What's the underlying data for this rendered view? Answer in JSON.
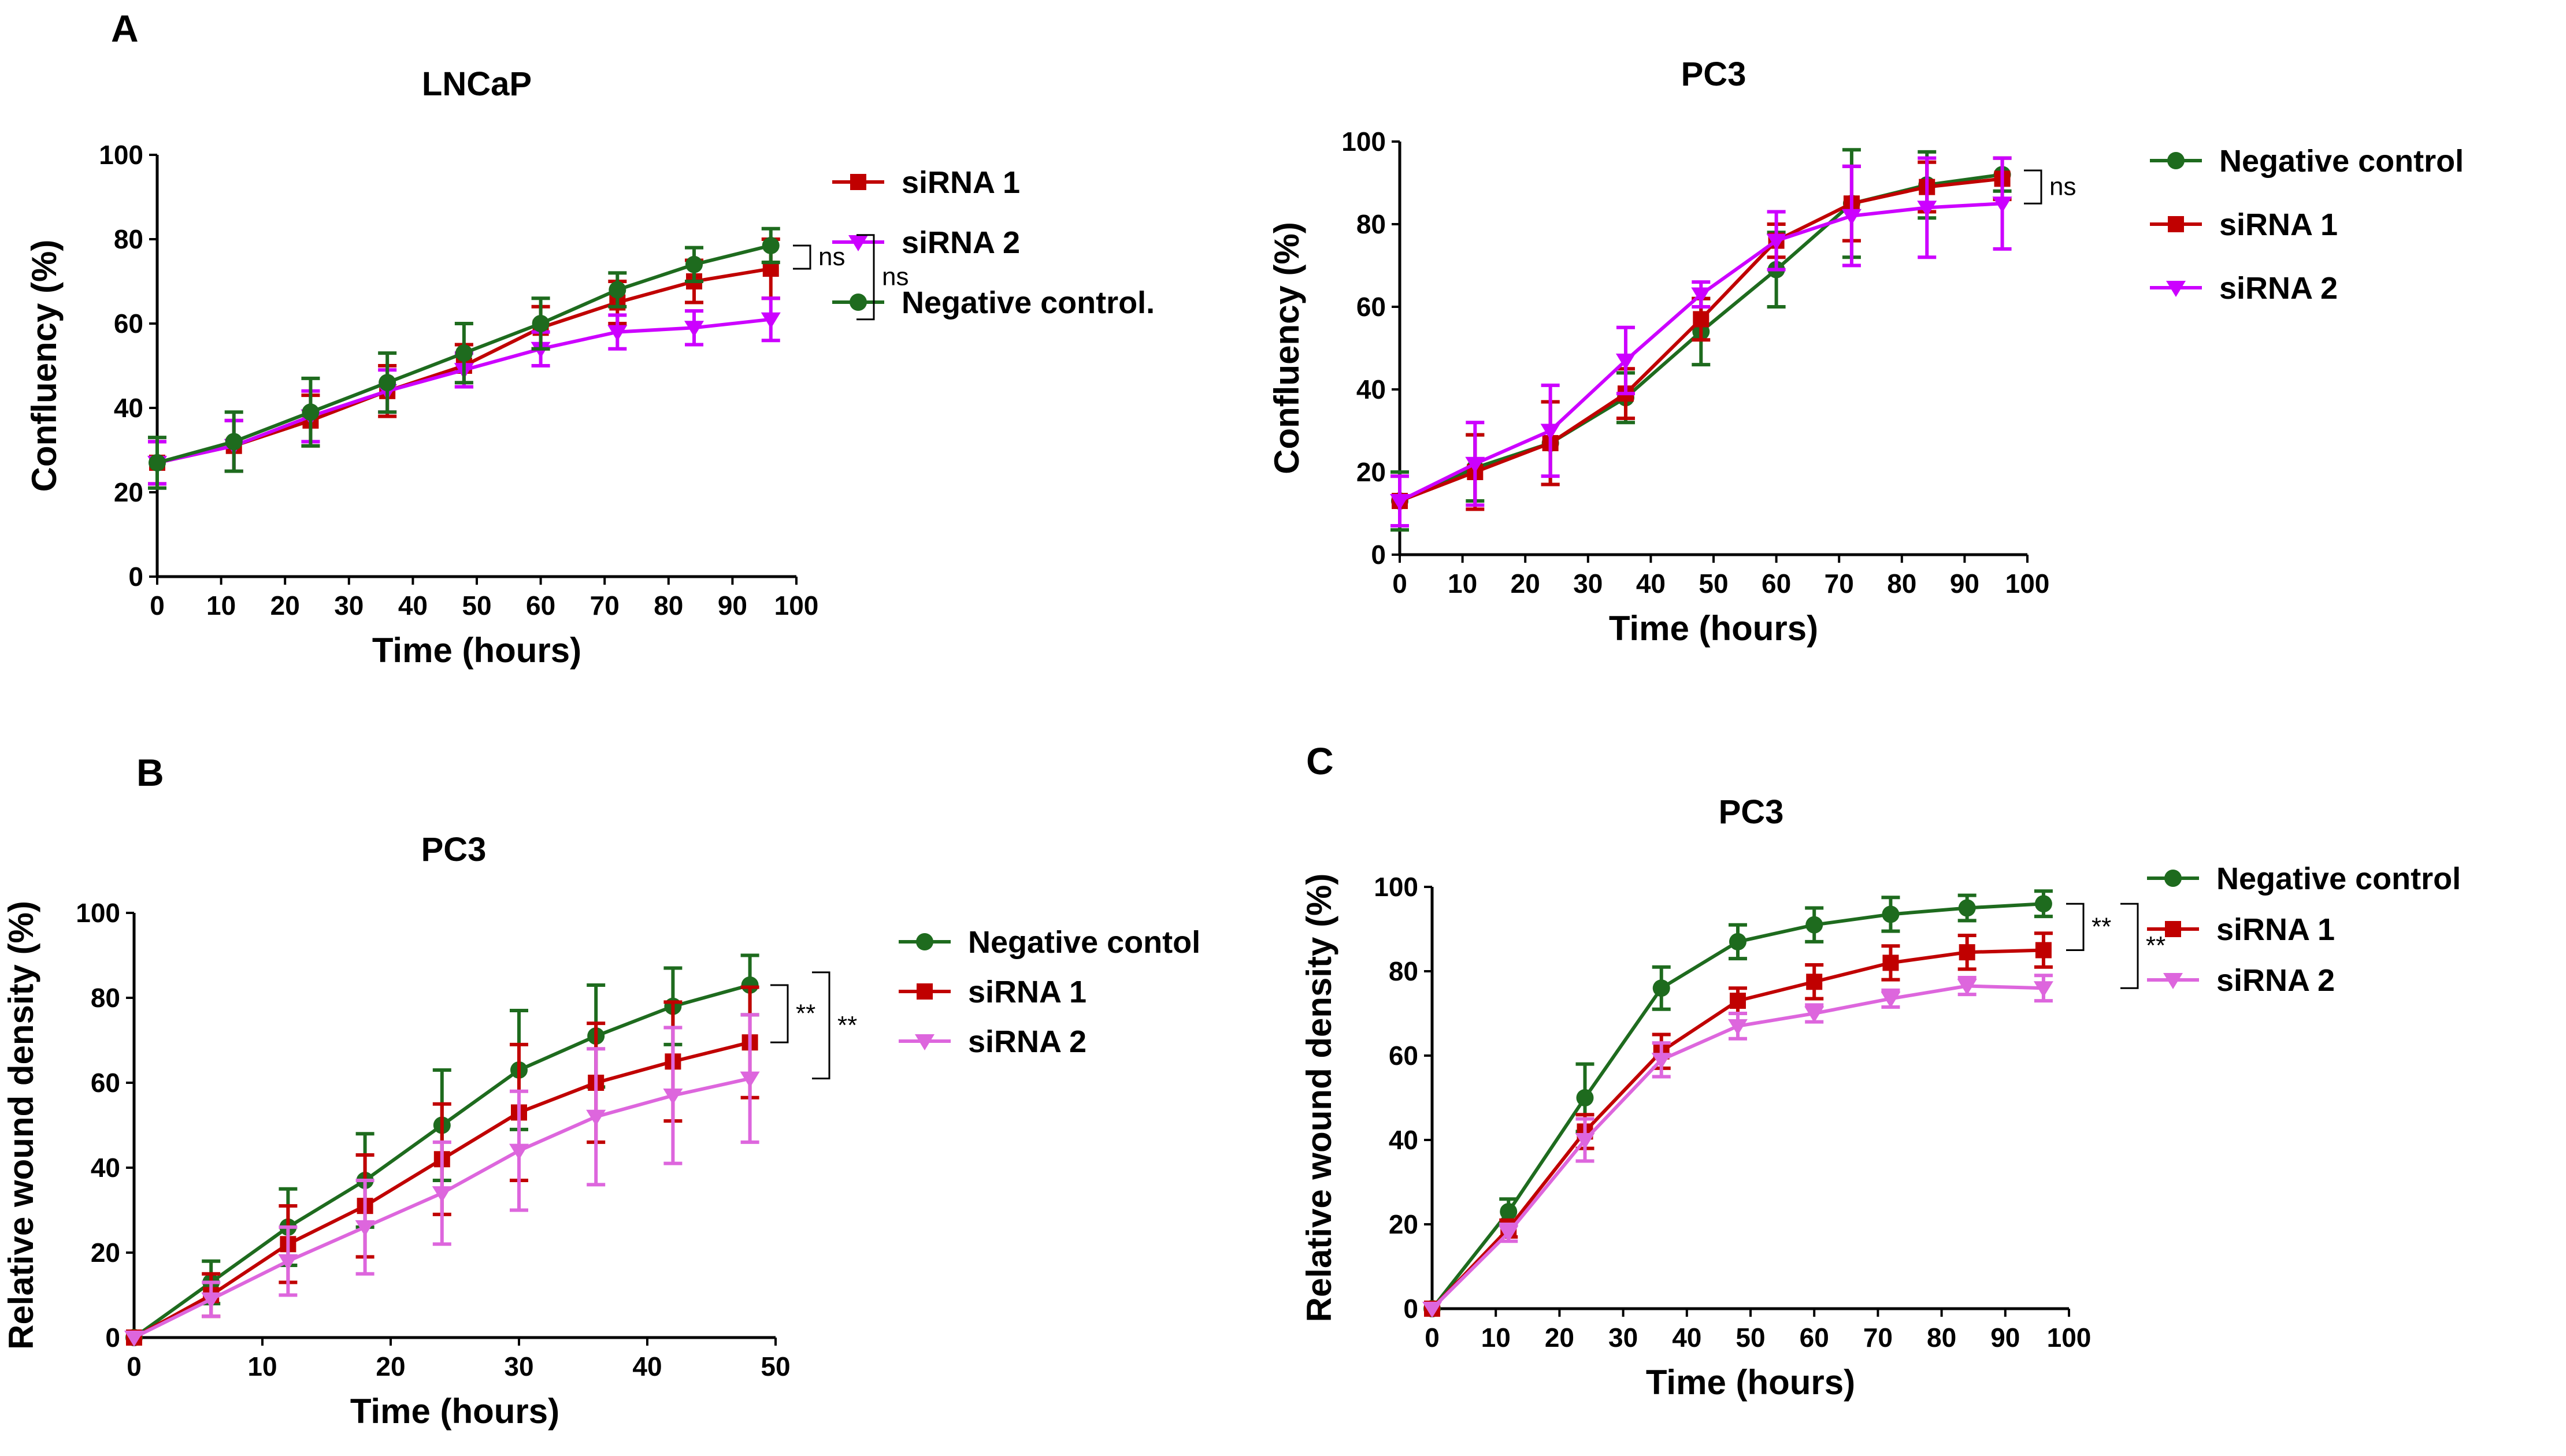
{
  "panels": [
    {
      "id": "A",
      "label": "A"
    },
    {
      "id": "B",
      "label": "B"
    },
    {
      "id": "C",
      "label": "C"
    }
  ],
  "chart_data": [
    {
      "id": "a-lncap",
      "panel": "A",
      "type": "line",
      "title": "LNCaP",
      "xlabel": "Time (hours)",
      "ylabel": "Confluency (%)",
      "xlim": [
        0,
        100
      ],
      "ylim": [
        0,
        100
      ],
      "xticks": [
        0,
        10,
        20,
        30,
        40,
        50,
        60,
        70,
        80,
        90,
        100
      ],
      "yticks": [
        0,
        20,
        40,
        60,
        80,
        100
      ],
      "x": [
        0,
        12,
        24,
        36,
        48,
        60,
        72,
        84,
        96
      ],
      "legend_order": [
        "siRNA 1",
        "siRNA 2",
        "Negative control."
      ],
      "series": [
        {
          "name": "siRNA 1",
          "color": "#c00000",
          "marker": "square",
          "values": [
            27,
            31,
            37,
            44,
            50,
            59,
            65,
            70,
            73
          ],
          "errors": [
            5,
            6,
            6,
            6,
            5,
            5,
            5,
            5,
            7
          ]
        },
        {
          "name": "siRNA 2",
          "color": "#cc00ff",
          "marker": "triangle-down",
          "values": [
            27,
            31,
            38,
            44,
            49,
            54,
            58,
            59,
            61
          ],
          "errors": [
            5,
            6,
            6,
            5,
            4,
            4,
            4,
            4,
            5
          ]
        },
        {
          "name": "Negative control.",
          "color": "#1e6b1e",
          "marker": "circle",
          "values": [
            27,
            32,
            39,
            46,
            53,
            60,
            68,
            74,
            78.5
          ],
          "errors": [
            6,
            7,
            8,
            7,
            7,
            6,
            4,
            4,
            4
          ]
        }
      ],
      "significance": [
        {
          "label": "ns",
          "from": 78.5,
          "to": 73
        },
        {
          "label": "ns",
          "from": 81,
          "to": 61
        }
      ]
    },
    {
      "id": "a-pc3",
      "panel": "A",
      "type": "line",
      "title": "PC3",
      "xlabel": "Time (hours)",
      "ylabel": "Confluency (%)",
      "xlim": [
        0,
        100
      ],
      "ylim": [
        0,
        100
      ],
      "xticks": [
        0,
        10,
        20,
        30,
        40,
        50,
        60,
        70,
        80,
        90,
        100
      ],
      "yticks": [
        0,
        20,
        40,
        60,
        80,
        100
      ],
      "x": [
        0,
        12,
        24,
        36,
        48,
        60,
        72,
        84,
        96
      ],
      "legend_order": [
        "Negative control",
        "siRNA 1",
        "siRNA 2"
      ],
      "series": [
        {
          "name": "Negative control",
          "color": "#1e6b1e",
          "marker": "circle",
          "values": [
            13,
            21,
            27,
            38,
            54,
            69,
            85,
            89.5,
            92
          ],
          "errors": [
            7,
            8,
            10,
            6,
            8,
            9,
            13,
            8,
            4
          ]
        },
        {
          "name": "siRNA 1",
          "color": "#c00000",
          "marker": "square",
          "values": [
            13,
            20,
            27,
            39,
            57,
            76,
            85,
            89,
            91
          ],
          "errors": [
            6,
            9,
            10,
            6,
            5,
            4,
            9,
            6,
            5
          ]
        },
        {
          "name": "siRNA 2",
          "color": "#cc00ff",
          "marker": "triangle-down",
          "values": [
            13,
            22,
            30,
            47,
            63,
            76,
            82,
            84,
            85
          ],
          "errors": [
            6,
            10,
            11,
            8,
            3,
            7,
            12,
            12,
            11
          ]
        }
      ],
      "significance": [
        {
          "label": "ns",
          "from": 93,
          "to": 85
        }
      ]
    },
    {
      "id": "b-pc3",
      "panel": "B",
      "type": "line",
      "title": "PC3",
      "xlabel": "Time (hours)",
      "ylabel": "Relative wound density (%)",
      "xlim": [
        0,
        50
      ],
      "ylim": [
        0,
        100
      ],
      "xticks": [
        0,
        10,
        20,
        30,
        40,
        50
      ],
      "yticks": [
        0,
        20,
        40,
        60,
        80,
        100
      ],
      "x": [
        0,
        6,
        12,
        18,
        24,
        30,
        36,
        42,
        48
      ],
      "legend_order": [
        "Negative contol",
        "siRNA 1",
        "siRNA 2"
      ],
      "series": [
        {
          "name": "Negative contol",
          "color": "#1e6b1e",
          "marker": "circle",
          "values": [
            0,
            13,
            26,
            37,
            50,
            63,
            71,
            78,
            83
          ],
          "errors": [
            0,
            5,
            9,
            11,
            13,
            14,
            12,
            9,
            7
          ]
        },
        {
          "name": "siRNA 1",
          "color": "#c00000",
          "marker": "square",
          "values": [
            0,
            10,
            22,
            31,
            42,
            53,
            60,
            65,
            69.5
          ],
          "errors": [
            0,
            5,
            9,
            12,
            13,
            16,
            14,
            14,
            13
          ]
        },
        {
          "name": "siRNA 2",
          "color": "#dd66dd",
          "marker": "triangle-down",
          "values": [
            0,
            9,
            18,
            26,
            34,
            44,
            52,
            57,
            61
          ],
          "errors": [
            0,
            4,
            8,
            11,
            12,
            14,
            16,
            16,
            15
          ]
        }
      ],
      "significance": [
        {
          "label": "**",
          "from": 83,
          "to": 69.5
        },
        {
          "label": "**",
          "from": 86,
          "to": 61
        }
      ]
    },
    {
      "id": "c-pc3",
      "panel": "C",
      "type": "line",
      "title": "PC3",
      "xlabel": "Time (hours)",
      "ylabel": "Relative wound density (%)",
      "xlim": [
        0,
        100
      ],
      "ylim": [
        0,
        100
      ],
      "xticks": [
        0,
        10,
        20,
        30,
        40,
        50,
        60,
        70,
        80,
        90,
        100
      ],
      "yticks": [
        0,
        20,
        40,
        60,
        80,
        100
      ],
      "x": [
        0,
        12,
        24,
        36,
        48,
        60,
        72,
        84,
        96
      ],
      "legend_order": [
        "Negative control",
        "siRNA 1",
        "siRNA 2"
      ],
      "series": [
        {
          "name": "Negative control",
          "color": "#1e6b1e",
          "marker": "circle",
          "values": [
            0,
            23,
            50,
            76,
            87,
            91,
            93.5,
            95,
            96
          ],
          "errors": [
            0,
            3,
            8,
            5,
            4,
            4,
            4,
            3,
            3
          ]
        },
        {
          "name": "siRNA 1",
          "color": "#c00000",
          "marker": "square",
          "values": [
            0,
            19,
            42,
            61,
            73,
            77.5,
            82,
            84.5,
            85
          ],
          "errors": [
            0,
            2,
            4,
            4,
            3,
            4,
            4,
            4,
            4
          ]
        },
        {
          "name": "siRNA 2",
          "color": "#dd66dd",
          "marker": "triangle-down",
          "values": [
            0,
            18,
            40,
            59,
            67,
            70,
            73.5,
            76.5,
            76
          ],
          "errors": [
            0,
            2,
            5,
            4,
            3,
            2,
            2,
            2,
            3
          ]
        }
      ],
      "significance": [
        {
          "label": "**",
          "from": 96,
          "to": 85
        },
        {
          "label": "**",
          "from": 96,
          "to": 76
        }
      ]
    }
  ]
}
